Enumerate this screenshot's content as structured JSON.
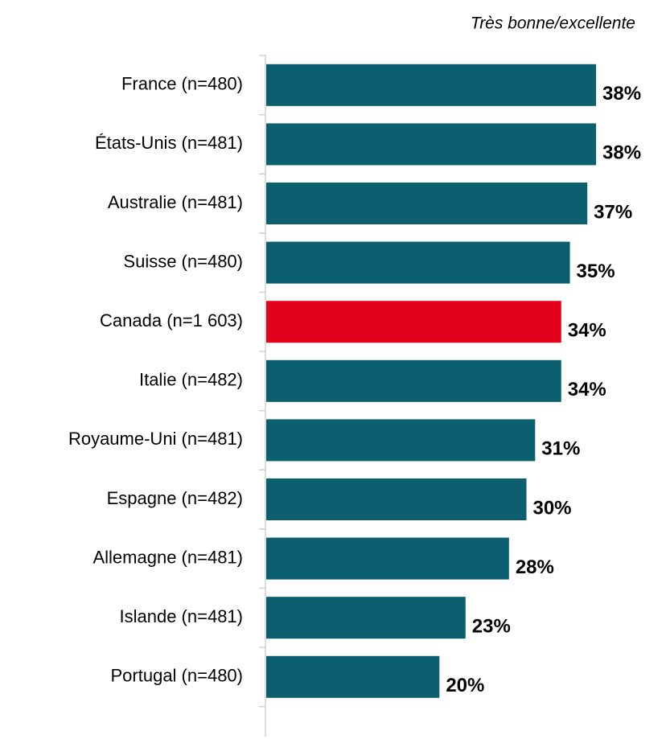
{
  "chart_data": {
    "type": "barh",
    "subtitle": "Très bonne/excellente",
    "categories": [
      "France (n=480)",
      "États-Unis (n=481)",
      "Australie (n=481)",
      "Suisse (n=480)",
      "Canada (n=1 603)",
      "Italie (n=482)",
      "Royaume-Uni (n=481)",
      "Espagne (n=482)",
      "Allemagne (n=481)",
      "Islande (n=481)",
      "Portugal (n=480)"
    ],
    "values": [
      38,
      38,
      37,
      35,
      34,
      34,
      31,
      30,
      28,
      23,
      20
    ],
    "value_labels": [
      "38%",
      "38%",
      "37%",
      "35%",
      "34%",
      "34%",
      "31%",
      "30%",
      "28%",
      "23%",
      "20%"
    ],
    "colors": [
      "#0b5f6e",
      "#0b5f6e",
      "#0b5f6e",
      "#0b5f6e",
      "#e3001b",
      "#0b5f6e",
      "#0b5f6e",
      "#0b5f6e",
      "#0b5f6e",
      "#0b5f6e",
      "#0b5f6e"
    ]
  }
}
